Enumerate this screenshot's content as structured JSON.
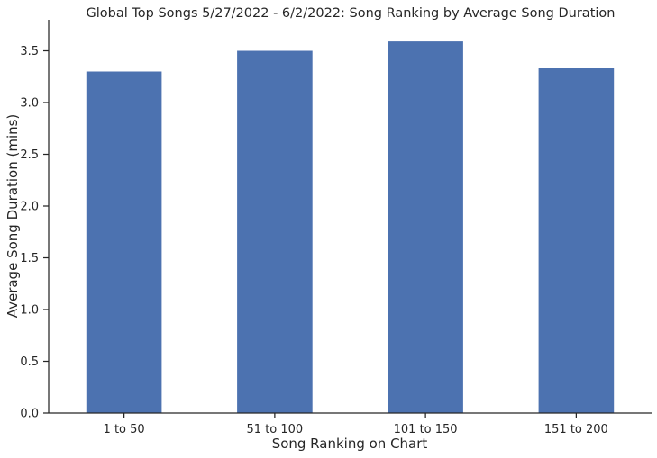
{
  "chart_data": {
    "type": "bar",
    "title": "Global Top Songs 5/27/2022 - 6/2/2022: Song Ranking by Average Song Duration",
    "xlabel": "Song Ranking on Chart",
    "ylabel": "Average Song Duration (mins)",
    "categories": [
      "1 to 50",
      "51 to 100",
      "101 to 150",
      "151 to 200"
    ],
    "values": [
      3.3,
      3.5,
      3.59,
      3.33
    ],
    "ylim": [
      0,
      3.8
    ],
    "yticks": [
      0.0,
      0.5,
      1.0,
      1.5,
      2.0,
      2.5,
      3.0,
      3.5
    ],
    "ytick_labels": [
      "0.0",
      "0.5",
      "1.0",
      "1.5",
      "2.0",
      "2.5",
      "3.0",
      "3.5"
    ],
    "grid": false,
    "bar_color": "#4c72b0",
    "axis_color": "#262626"
  }
}
